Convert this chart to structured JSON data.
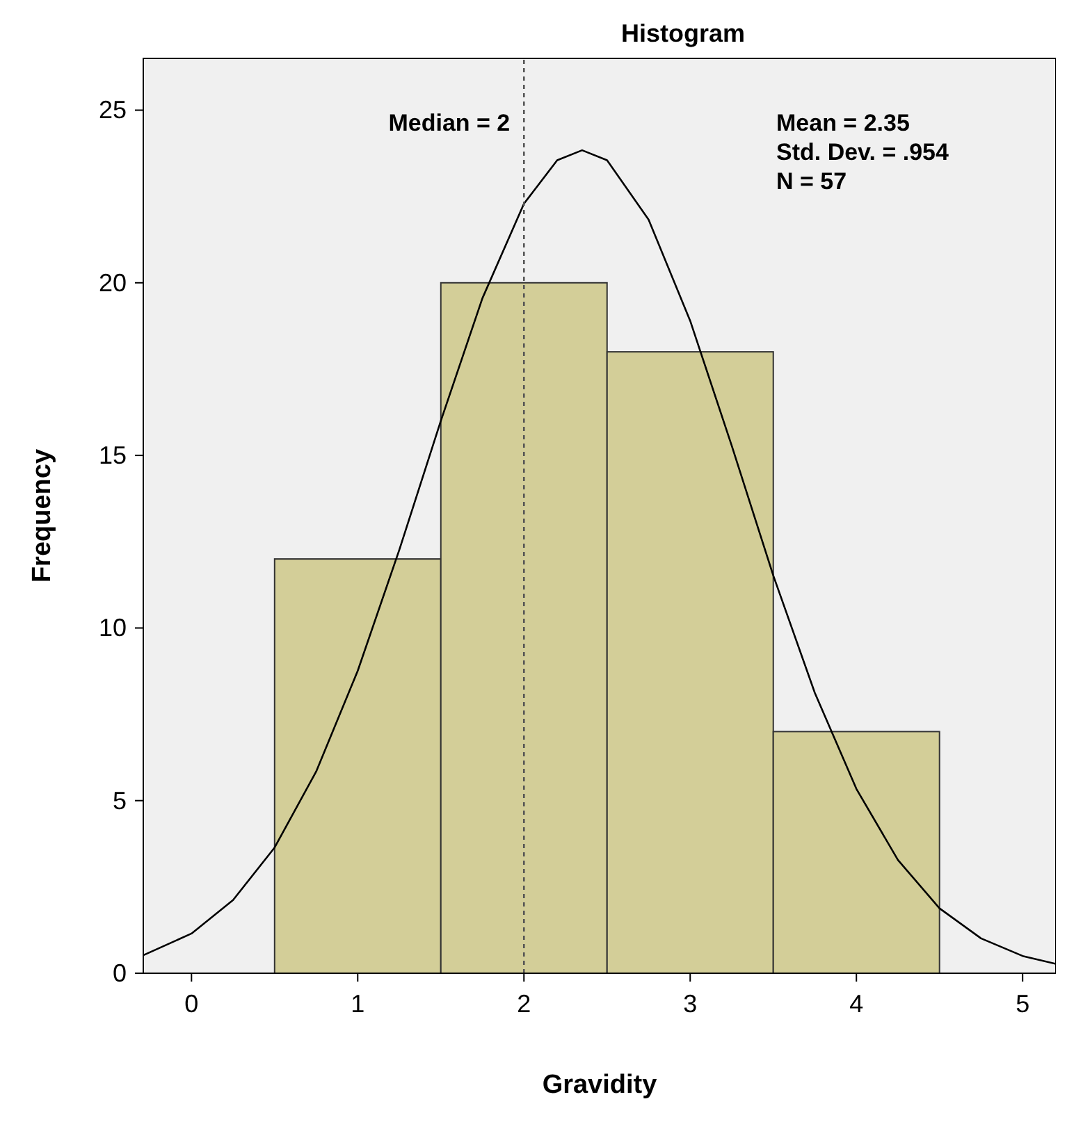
{
  "chart_data": {
    "type": "histogram",
    "title": "Histogram",
    "xlabel": "Gravidity",
    "ylabel": "Frequency",
    "bins": [
      0.5,
      1.5,
      2.5,
      3.5,
      4.5
    ],
    "values": [
      12,
      20,
      18,
      7
    ],
    "color": "#d3ce98",
    "series": [
      {
        "type": "line",
        "color": "#000000",
        "x": [
          -0.29,
          0,
          0.25,
          0.5,
          0.75,
          1,
          1.25,
          1.5,
          1.75,
          2,
          2.2,
          2.35,
          2.5,
          2.75,
          3,
          3.25,
          3.5,
          3.75,
          4,
          4.25,
          4.5,
          4.75,
          5,
          5.2
        ],
        "values": [
          0.52,
          1.15,
          2.12,
          3.64,
          5.84,
          8.76,
          12.26,
          16.0,
          19.55,
          22.29,
          23.55,
          23.84,
          23.55,
          21.83,
          18.9,
          15.28,
          11.52,
          8.12,
          5.34,
          3.28,
          1.88,
          1.01,
          0.5,
          0.27
        ]
      }
    ],
    "xlim": [
      -0.29,
      5.2
    ],
    "ylim": [
      0,
      26.5
    ],
    "xticks": [
      0,
      1,
      2,
      3,
      4,
      5
    ],
    "yticks": [
      0,
      5,
      10,
      15,
      20,
      25
    ],
    "grid": false,
    "marker": "none",
    "line_style": "solid",
    "ref_lines": [
      {
        "axis": "x",
        "value": 2,
        "label": "Median = 2",
        "line_style": "dotted",
        "color": "#555555"
      }
    ],
    "annotations": [
      "Mean = 2.35",
      "Std. Dev. = .954",
      "N = 57"
    ]
  }
}
